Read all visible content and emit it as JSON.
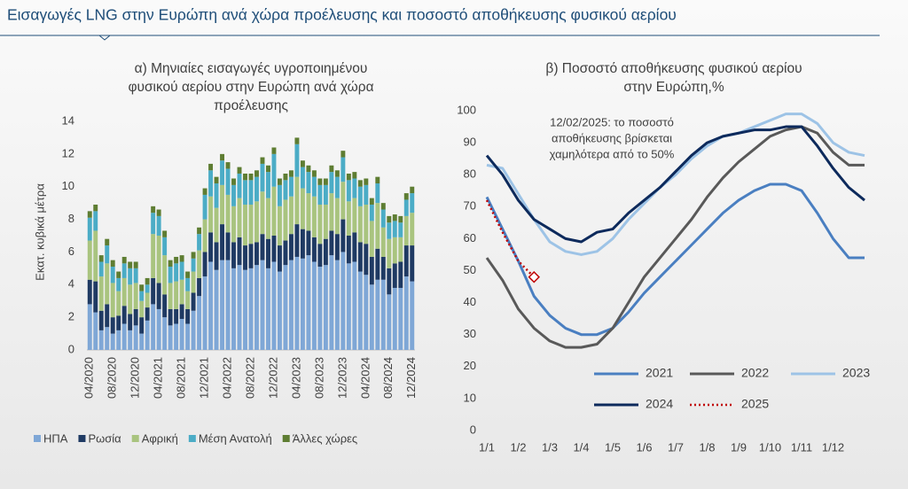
{
  "title": "Εισαγωγές LNG στην Ευρώπη ανά χώρα προέλευσης και ποσοστό αποθήκευσης φυσικού αερίου",
  "chart_data": [
    {
      "type": "bar",
      "stacked": true,
      "title": [
        "α) Μηνιαίες εισαγωγές υγροποιημένου",
        "φυσικού αερίου στην Ευρώπη ανά χώρα",
        "προέλευσης"
      ],
      "y_label": "Εκατ. κυβικά μέτρα",
      "categories": [
        "04/2020",
        null,
        null,
        null,
        "08/2020",
        null,
        null,
        null,
        "12/2020",
        null,
        null,
        null,
        "04/2021",
        null,
        null,
        null,
        "08/2021",
        null,
        null,
        null,
        "12/2021",
        null,
        null,
        null,
        "04/2022",
        null,
        null,
        null,
        "08/2022",
        null,
        null,
        null,
        "12/2022",
        null,
        null,
        null,
        "04/2023",
        null,
        null,
        null,
        "08/2023",
        null,
        null,
        null,
        "12/2023",
        null,
        null,
        null,
        "04/2024",
        null,
        null,
        null,
        "08/2024",
        null,
        null,
        null,
        "12/2024"
      ],
      "series": [
        {
          "name": "ΗΠΑ",
          "color": "#7fa7d6",
          "values": [
            2.8,
            2.3,
            1.2,
            1.4,
            1.0,
            1.2,
            1.6,
            1.2,
            1.5,
            1.0,
            1.8,
            2.8,
            2.5,
            2.0,
            1.5,
            1.6,
            1.9,
            1.6,
            2.4,
            3.3,
            4.5,
            5.4,
            4.9,
            5.5,
            5.5,
            5.0,
            5.2,
            4.9,
            5.0,
            5.2,
            5.5,
            5.0,
            5.4,
            4.8,
            5.2,
            5.5,
            5.7,
            5.6,
            5.8,
            5.4,
            5.1,
            5.2,
            5.8,
            5.5,
            6.0,
            5.3,
            5.4,
            4.8,
            4.6,
            4.0,
            4.3,
            4.3,
            3.4,
            3.8,
            3.8,
            4.5,
            4.2
          ]
        },
        {
          "name": "Ρωσία",
          "color": "#1f3a63",
          "values": [
            1.5,
            1.9,
            1.2,
            1.4,
            1.0,
            0.9,
            1.1,
            1.0,
            1.0,
            1.0,
            0.8,
            1.6,
            1.6,
            1.4,
            1.0,
            0.9,
            0.9,
            0.9,
            1.1,
            1.1,
            1.5,
            1.8,
            1.7,
            2.2,
            1.7,
            1.6,
            1.7,
            1.5,
            1.5,
            1.4,
            1.6,
            1.8,
            1.6,
            1.6,
            1.5,
            1.6,
            2.0,
            1.8,
            1.5,
            1.5,
            1.4,
            1.6,
            1.5,
            1.6,
            2.0,
            1.7,
            1.8,
            1.8,
            1.9,
            1.7,
            1.9,
            1.4,
            1.6,
            1.5,
            1.6,
            1.9,
            2.2
          ]
        },
        {
          "name": "Αφρική",
          "color": "#a9c47f",
          "values": [
            2.4,
            3.1,
            2.1,
            2.5,
            2.1,
            1.5,
            1.7,
            1.8,
            1.6,
            1.0,
            0.9,
            2.7,
            2.9,
            2.4,
            1.6,
            1.7,
            1.5,
            1.1,
            1.3,
            1.7,
            2.0,
            2.2,
            2.1,
            2.4,
            2.3,
            2.2,
            2.4,
            2.5,
            2.4,
            2.5,
            2.6,
            2.5,
            3.0,
            2.4,
            2.5,
            2.3,
            2.9,
            2.5,
            2.3,
            2.5,
            2.4,
            2.1,
            2.3,
            2.2,
            2.3,
            2.1,
            2.1,
            2.2,
            2.4,
            2.2,
            2.8,
            1.8,
            1.8,
            1.6,
            1.5,
            1.8,
            2.0
          ]
        },
        {
          "name": "Μέση Ανατολή",
          "color": "#4bacc6",
          "values": [
            1.4,
            1.2,
            0.9,
            1.1,
            1.0,
            0.8,
            0.9,
            1.0,
            0.9,
            0.6,
            0.5,
            1.3,
            1.2,
            1.1,
            1.0,
            1.1,
            1.1,
            0.8,
            0.8,
            1.0,
            1.5,
            1.6,
            1.5,
            1.5,
            1.6,
            1.3,
            1.5,
            1.5,
            1.5,
            1.5,
            1.7,
            1.6,
            2.0,
            1.3,
            1.2,
            1.2,
            2.0,
            1.3,
            1.3,
            1.2,
            1.2,
            1.2,
            1.3,
            1.3,
            1.5,
            1.3,
            1.2,
            1.2,
            1.2,
            1.0,
            1.2,
            1.1,
            1.0,
            1.0,
            0.9,
            1.0,
            1.2
          ]
        },
        {
          "name": "Άλλες χώρες",
          "color": "#5e7d32",
          "values": [
            0.4,
            0.4,
            0.4,
            0.4,
            0.4,
            0.4,
            0.4,
            0.4,
            0.4,
            0.4,
            0.4,
            0.4,
            0.4,
            0.4,
            0.4,
            0.4,
            0.4,
            0.4,
            0.4,
            0.4,
            0.4,
            0.4,
            0.4,
            0.4,
            0.4,
            0.4,
            0.4,
            0.4,
            0.4,
            0.4,
            0.4,
            0.4,
            0.4,
            0.4,
            0.4,
            0.4,
            0.4,
            0.4,
            0.4,
            0.4,
            0.4,
            0.4,
            0.4,
            0.4,
            0.4,
            0.4,
            0.4,
            0.4,
            0.4,
            0.4,
            0.4,
            0.4,
            0.4,
            0.4,
            0.4,
            0.4,
            0.4
          ]
        }
      ],
      "ylim": [
        0,
        14
      ],
      "yticks": [
        0,
        2,
        4,
        6,
        8,
        10,
        12,
        14
      ],
      "legend": "bottom"
    },
    {
      "type": "line",
      "title": [
        "β) Ποσοστό αποθήκευσης φυσικού αερίου",
        "στην Ευρώπη,%"
      ],
      "annotation": [
        "12/02/2025: το ποσοστό",
        "αποθήκευσης βρίσκεται",
        "χαμηλότερα από το 50%"
      ],
      "categories": [
        "1/1",
        null,
        "1/2",
        null,
        "1/3",
        null,
        "1/4",
        null,
        "1/5",
        null,
        "1/6",
        null,
        "1/7",
        null,
        "1/8",
        null,
        "1/9",
        null,
        "1/10",
        null,
        "1/11",
        null,
        "1/12",
        null,
        null
      ],
      "series": [
        {
          "name": "2021",
          "color": "#4a7fc1",
          "values": [
            73,
            63,
            53,
            42,
            36,
            32,
            30,
            30,
            32,
            37,
            43,
            48,
            53,
            58,
            63,
            68,
            72,
            75,
            77,
            77,
            75,
            68,
            60,
            54,
            54
          ]
        },
        {
          "name": "2022",
          "color": "#595959",
          "values": [
            54,
            47,
            38,
            32,
            28,
            26,
            26,
            27,
            32,
            40,
            48,
            54,
            60,
            66,
            73,
            79,
            84,
            88,
            92,
            94,
            95,
            93,
            87,
            83,
            83
          ]
        },
        {
          "name": "2023",
          "color": "#9dc3e6",
          "values": [
            83,
            82,
            74,
            66,
            59,
            56,
            55,
            56,
            60,
            66,
            71,
            76,
            80,
            85,
            89,
            92,
            93,
            95,
            97,
            99,
            99,
            96,
            90,
            87,
            86
          ]
        },
        {
          "name": "2024",
          "color": "#0d2a5c",
          "values": [
            86,
            80,
            72,
            66,
            63,
            60,
            59,
            62,
            63,
            68,
            72,
            76,
            81,
            86,
            90,
            92,
            93,
            94,
            94,
            95,
            95,
            89,
            82,
            76,
            72
          ]
        },
        {
          "name": "2025",
          "color": "#c00000",
          "dotted": true,
          "values": [
            72,
            62,
            53,
            48,
            null,
            null,
            null,
            null,
            null,
            null,
            null,
            null,
            null,
            null,
            null,
            null,
            null,
            null,
            null,
            null,
            null,
            null,
            null,
            null,
            null
          ]
        }
      ],
      "ylim": [
        0,
        100
      ],
      "yticks": [
        0,
        10,
        20,
        30,
        40,
        50,
        60,
        70,
        80,
        90,
        100
      ],
      "legend": "lower right"
    }
  ]
}
